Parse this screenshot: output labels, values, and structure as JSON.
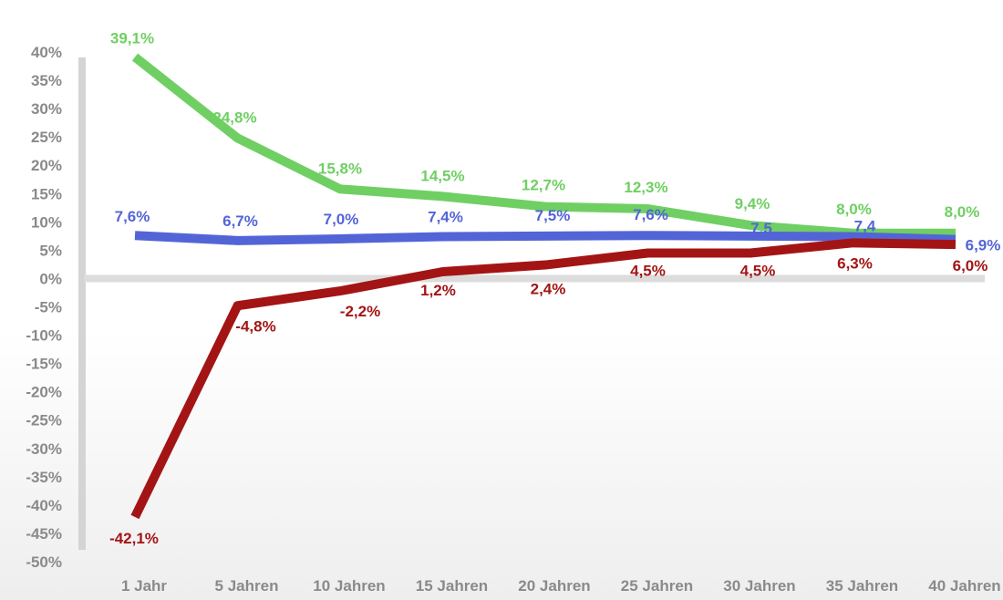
{
  "chart_data": {
    "type": "line",
    "categories": [
      "1 Jahr",
      "5 Jahren",
      "10 Jahren",
      "15 Jahren",
      "20 Jahren",
      "25 Jahren",
      "30 Jahren",
      "35 Jahren",
      "40 Jahren"
    ],
    "y_ticks": [
      "40%",
      "35%",
      "30%",
      "25%",
      "20%",
      "15%",
      "10%",
      "5%",
      "0%",
      "-5%",
      "-10%",
      "-15%",
      "-20%",
      "-25%",
      "-30%",
      "-35%",
      "-40%",
      "-45%",
      "-50%"
    ],
    "ylim": [
      -50,
      40
    ],
    "grid": false,
    "series": [
      {
        "color": "#6fcf63",
        "values": [
          39.1,
          24.8,
          15.8,
          14.5,
          12.7,
          12.3,
          9.4,
          8.0,
          8.0
        ],
        "labels": [
          "39,1%",
          "24,8%",
          "15,8%",
          "14,5%",
          "12,7%",
          "12,3%",
          "9,4%",
          "8,0%",
          "8,0%"
        ]
      },
      {
        "color": "#5365d6",
        "values": [
          7.6,
          6.7,
          7.0,
          7.4,
          7.5,
          7.6,
          7.5,
          7.4,
          6.9
        ],
        "labels": [
          "7,6%",
          "6,7%",
          "7,0%",
          "7,4%",
          "7,5%",
          "7,6%",
          "7,5",
          "7,4",
          "6,9%"
        ]
      },
      {
        "color": "#a31515",
        "values": [
          -42.1,
          -4.8,
          -2.2,
          1.2,
          2.4,
          4.5,
          4.5,
          6.3,
          6.0
        ],
        "labels": [
          "-42,1%",
          "-4,8%",
          "-2,2%",
          "1,2%",
          "2,4%",
          "4,5%",
          "4,5%",
          "6,3%",
          "6,0%"
        ]
      }
    ]
  }
}
